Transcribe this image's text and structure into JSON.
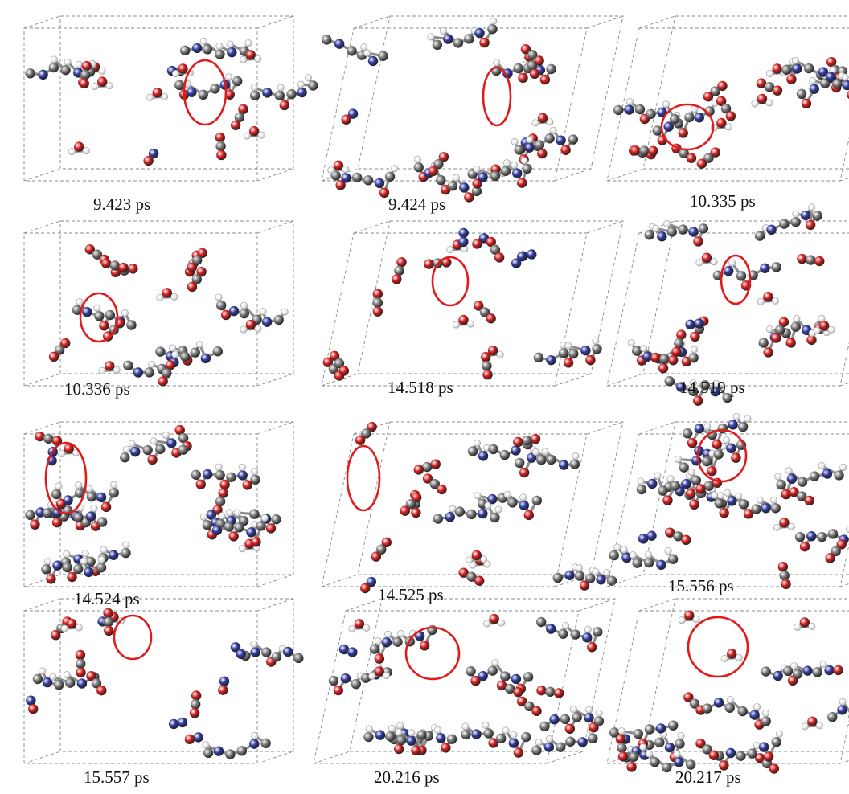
{
  "frames": [
    {
      "time": "9.423 ps"
    },
    {
      "time": "9.424 ps"
    },
    {
      "time": "10.335 ps"
    },
    {
      "time": "10.336 ps"
    },
    {
      "time": "14.518 ps"
    },
    {
      "time": "14.519 ps"
    },
    {
      "time": "14.524 ps"
    },
    {
      "time": "14.525 ps"
    },
    {
      "time": "15.556 ps"
    },
    {
      "time": "15.557 ps"
    },
    {
      "time": "20.216 ps"
    },
    {
      "time": "20.217 ps"
    }
  ],
  "colors": {
    "oxygen": "#d81e1e",
    "nitrogen": "#2f3aa0",
    "carbon": "#7a7a7a",
    "hydrogen": "#f4f4f4",
    "highlight_circle": "#e01b1b",
    "cell_edge": "#8a8a8a"
  }
}
